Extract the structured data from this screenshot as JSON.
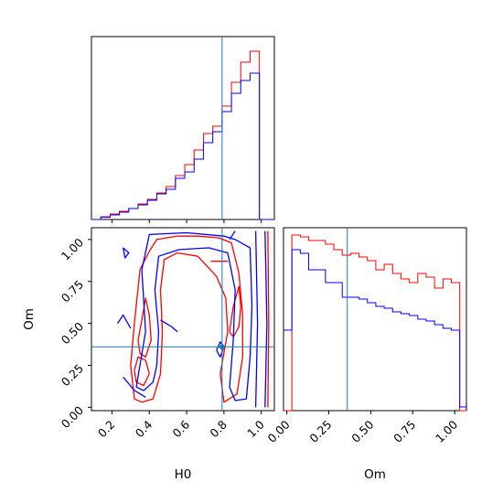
{
  "chart_data": {
    "type": "corner",
    "colors": {
      "sample_a": "#ff0000",
      "sample_b": "#0000ff",
      "truth": "#1f77b4"
    },
    "parameters": [
      "H0",
      "Om"
    ],
    "truth": {
      "H0": 0.79,
      "Om": 0.36
    },
    "axes": {
      "H0": {
        "label": "H0",
        "range": [
          0.09,
          1.07
        ],
        "ticks": [
          0.2,
          0.4,
          0.6,
          0.8,
          1.0
        ],
        "tick_labels": [
          "0.2",
          "0.4",
          "0.6",
          "0.8",
          "1.0"
        ]
      },
      "Om": {
        "label": "Om",
        "range": [
          -0.02,
          1.07
        ],
        "ticks": [
          0.0,
          0.25,
          0.5,
          0.75,
          1.0
        ],
        "tick_labels": [
          "0.00",
          "0.25",
          "0.50",
          "0.75",
          "1.00"
        ]
      }
    },
    "hist_H0": {
      "bin_edges": [
        0.09,
        0.14,
        0.19,
        0.24,
        0.29,
        0.34,
        0.39,
        0.44,
        0.49,
        0.54,
        0.59,
        0.64,
        0.69,
        0.74,
        0.79,
        0.84,
        0.89,
        0.94,
        0.99,
        1.04,
        1.07
      ],
      "sample_a": [
        0.0,
        0.015,
        0.03,
        0.045,
        0.06,
        0.085,
        0.11,
        0.145,
        0.18,
        0.24,
        0.3,
        0.38,
        0.47,
        0.51,
        0.62,
        0.75,
        0.86,
        0.92,
        0.0,
        0.0
      ],
      "sample_b": [
        0.0,
        0.012,
        0.025,
        0.04,
        0.06,
        0.08,
        0.105,
        0.14,
        0.165,
        0.225,
        0.26,
        0.33,
        0.42,
        0.48,
        0.59,
        0.69,
        0.76,
        0.8,
        0.0,
        0.0
      ],
      "ylim": [
        0,
        1.0
      ]
    },
    "hist_Om": {
      "bin_edges": [
        -0.02,
        0.03,
        0.08,
        0.13,
        0.18,
        0.23,
        0.28,
        0.33,
        0.38,
        0.43,
        0.48,
        0.53,
        0.58,
        0.63,
        0.68,
        0.73,
        0.78,
        0.83,
        0.88,
        0.93,
        0.98,
        1.03,
        1.07
      ],
      "sample_a": [
        0.0,
        0.96,
        0.95,
        0.93,
        0.93,
        0.91,
        0.88,
        0.85,
        0.86,
        0.84,
        0.82,
        0.77,
        0.8,
        0.75,
        0.72,
        0.7,
        0.75,
        0.73,
        0.67,
        0.72,
        0.7,
        0.0
      ],
      "sample_b": [
        0.44,
        0.88,
        0.86,
        0.77,
        0.77,
        0.7,
        0.7,
        0.62,
        0.62,
        0.61,
        0.59,
        0.57,
        0.56,
        0.54,
        0.53,
        0.52,
        0.5,
        0.49,
        0.47,
        0.45,
        0.44,
        0.02
      ],
      "ylim": [
        0,
        1.0
      ]
    },
    "contours_2d": {
      "sample_a": [
        [
          [
            0.32,
            0.05
          ],
          [
            0.3,
            0.25
          ],
          [
            0.32,
            0.5
          ],
          [
            0.35,
            0.82
          ],
          [
            0.4,
            0.93
          ],
          [
            0.44,
            1.0
          ],
          [
            0.55,
            1.02
          ],
          [
            0.66,
            1.02
          ],
          [
            0.77,
            1.01
          ],
          [
            0.84,
            0.98
          ],
          [
            0.88,
            0.8
          ],
          [
            0.9,
            0.55
          ],
          [
            0.9,
            0.3
          ],
          [
            0.87,
            0.08
          ],
          [
            0.8,
            0.03
          ],
          [
            0.78,
            0.2
          ],
          [
            0.82,
            0.45
          ],
          [
            0.81,
            0.65
          ],
          [
            0.76,
            0.78
          ],
          [
            0.66,
            0.9
          ],
          [
            0.55,
            0.92
          ],
          [
            0.48,
            0.88
          ],
          [
            0.46,
            0.7
          ],
          [
            0.47,
            0.45
          ],
          [
            0.46,
            0.2
          ],
          [
            0.42,
            0.05
          ],
          [
            0.36,
            0.03
          ],
          [
            0.32,
            0.05
          ]
        ],
        [
          [
            0.34,
            0.4
          ],
          [
            0.36,
            0.52
          ],
          [
            0.38,
            0.65
          ],
          [
            0.4,
            0.55
          ],
          [
            0.41,
            0.4
          ],
          [
            0.38,
            0.3
          ],
          [
            0.35,
            0.32
          ],
          [
            0.34,
            0.4
          ]
        ],
        [
          [
            0.32,
            0.22
          ],
          [
            0.34,
            0.3
          ],
          [
            0.38,
            0.28
          ],
          [
            0.4,
            0.2
          ],
          [
            0.37,
            0.13
          ],
          [
            0.33,
            0.15
          ],
          [
            0.32,
            0.22
          ]
        ],
        [
          [
            0.83,
            0.45
          ],
          [
            0.85,
            0.6
          ],
          [
            0.88,
            0.72
          ],
          [
            0.89,
            0.6
          ],
          [
            0.88,
            0.48
          ],
          [
            0.85,
            0.42
          ],
          [
            0.83,
            0.45
          ]
        ],
        [
          [
            0.73,
            0.87
          ],
          [
            0.78,
            0.87
          ],
          [
            0.82,
            0.87
          ]
        ],
        [
          [
            1.035,
            0.0
          ],
          [
            1.04,
            0.5
          ],
          [
            1.035,
            1.05
          ]
        ]
      ],
      "sample_b": [
        [
          [
            0.33,
            0.12
          ],
          [
            0.38,
            0.45
          ],
          [
            0.36,
            0.82
          ],
          [
            0.4,
            1.03
          ],
          [
            0.6,
            1.04
          ],
          [
            0.8,
            1.02
          ],
          [
            0.86,
            1.0
          ],
          [
            0.94,
            0.95
          ],
          [
            0.95,
            0.6
          ],
          [
            0.94,
            0.3
          ],
          [
            0.92,
            0.05
          ],
          [
            0.86,
            0.04
          ],
          [
            0.83,
            0.12
          ],
          [
            0.85,
            0.4
          ],
          [
            0.86,
            0.7
          ],
          [
            0.82,
            0.92
          ],
          [
            0.72,
            0.95
          ],
          [
            0.56,
            0.94
          ],
          [
            0.45,
            0.9
          ],
          [
            0.43,
            0.7
          ],
          [
            0.45,
            0.45
          ],
          [
            0.44,
            0.25
          ],
          [
            0.42,
            0.15
          ],
          [
            0.37,
            0.1
          ],
          [
            0.33,
            0.12
          ]
        ],
        [
          [
            0.26,
            0.18
          ],
          [
            0.32,
            0.1
          ],
          [
            0.38,
            0.06
          ]
        ],
        [
          [
            0.23,
            0.5
          ],
          [
            0.26,
            0.55
          ],
          [
            0.3,
            0.47
          ]
        ],
        [
          [
            0.26,
            0.95
          ],
          [
            0.29,
            0.92
          ],
          [
            0.27,
            0.89
          ],
          [
            0.26,
            0.95
          ]
        ],
        [
          [
            0.46,
            0.52
          ],
          [
            0.52,
            0.48
          ],
          [
            0.55,
            0.45
          ]
        ],
        [
          [
            0.76,
            0.34
          ],
          [
            0.78,
            0.3
          ],
          [
            0.8,
            0.36
          ],
          [
            0.78,
            0.39
          ],
          [
            0.76,
            0.34
          ]
        ],
        [
          [
            0.83,
            1.0
          ],
          [
            0.86,
            1.05
          ]
        ],
        [
          [
            0.97,
            0.0
          ],
          [
            0.98,
            0.5
          ],
          [
            0.97,
            1.05
          ]
        ],
        [
          [
            1.02,
            0.0
          ],
          [
            1.03,
            0.5
          ],
          [
            1.02,
            1.05
          ]
        ]
      ]
    }
  }
}
